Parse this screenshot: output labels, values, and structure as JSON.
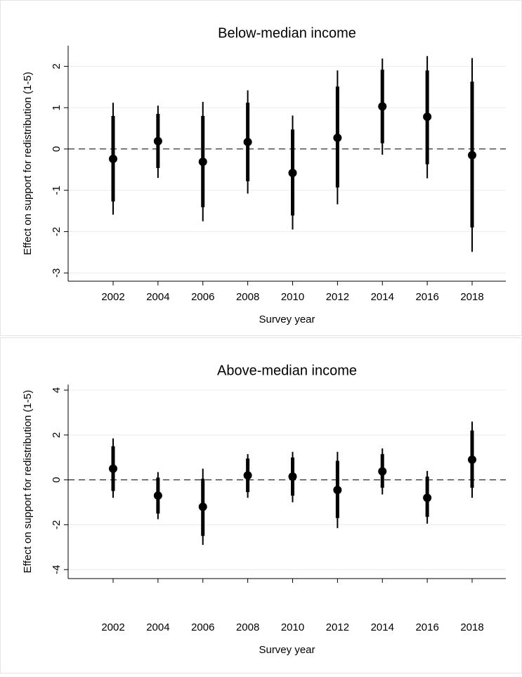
{
  "chart_data": [
    {
      "type": "coefplot",
      "title": "Below-median income",
      "x_label": "Survey year",
      "y_label": "Effect on support for redistribution (1-5)",
      "categories": [
        "2002",
        "2004",
        "2006",
        "2008",
        "2010",
        "2012",
        "2014",
        "2016",
        "2018"
      ],
      "values": [
        -0.24,
        0.19,
        -0.31,
        0.17,
        -0.58,
        0.27,
        1.03,
        0.78,
        -0.15
      ],
      "ci_inner_low": [
        -1.27,
        -0.46,
        -1.41,
        -0.78,
        -1.61,
        -0.93,
        0.14,
        -0.37,
        -1.9
      ],
      "ci_inner_high": [
        0.8,
        0.85,
        0.8,
        1.12,
        0.47,
        1.51,
        1.92,
        1.9,
        1.63
      ],
      "ci_outer_low": [
        -1.59,
        -0.7,
        -1.75,
        -1.08,
        -1.95,
        -1.34,
        -0.14,
        -0.71,
        -2.49
      ],
      "ci_outer_high": [
        1.12,
        1.05,
        1.14,
        1.42,
        0.81,
        1.9,
        2.19,
        2.25,
        2.2
      ],
      "color": "#000000",
      "ylim": [
        -3.2,
        2.5
      ],
      "yticks": [
        -3,
        -2,
        -1,
        0,
        1,
        2
      ],
      "grid": true,
      "refline": 0
    },
    {
      "type": "coefplot",
      "title": "Above-median income",
      "x_label": "Survey year",
      "y_label": "Effect on support for redistribution (1-5)",
      "categories": [
        "2002",
        "2004",
        "2006",
        "2008",
        "2010",
        "2012",
        "2014",
        "2016",
        "2018"
      ],
      "values": [
        0.5,
        -0.7,
        -1.2,
        0.2,
        0.15,
        -0.45,
        0.38,
        -0.8,
        0.9
      ],
      "ci_inner_low": [
        -0.5,
        -1.5,
        -2.5,
        -0.55,
        -0.7,
        -1.7,
        -0.35,
        -1.65,
        -0.35
      ],
      "ci_inner_high": [
        1.5,
        0.1,
        0.05,
        0.95,
        1.0,
        0.85,
        1.15,
        0.15,
        2.2
      ],
      "ci_outer_low": [
        -0.8,
        -1.75,
        -2.9,
        -0.8,
        -1.0,
        -2.15,
        -0.65,
        -1.95,
        -0.8
      ],
      "ci_outer_high": [
        1.85,
        0.35,
        0.5,
        1.15,
        1.25,
        1.25,
        1.4,
        0.4,
        2.6
      ],
      "color": "#000000",
      "ylim": [
        -4.4,
        4.25
      ],
      "yticks": [
        -4,
        -2,
        0,
        2,
        4
      ],
      "grid": true,
      "refline": 0
    }
  ]
}
